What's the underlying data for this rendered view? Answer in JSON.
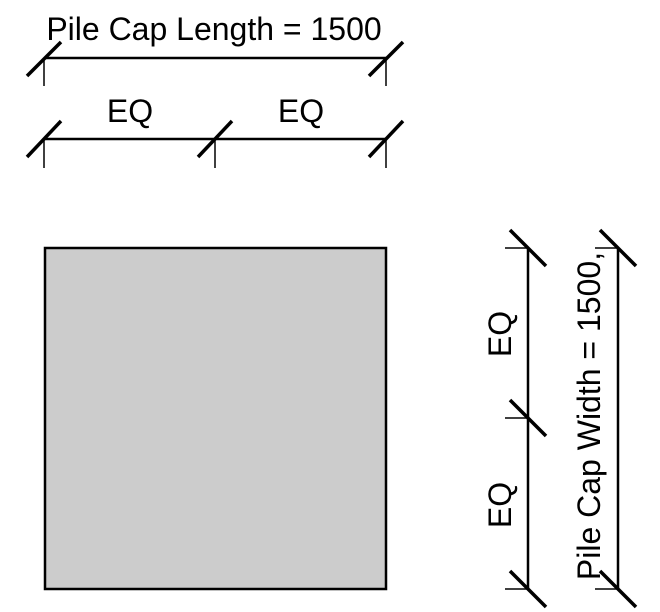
{
  "dimensions": {
    "length_label": "Pile Cap Length = 1500",
    "length_eq_left": "EQ",
    "length_eq_right": "EQ",
    "width_label": "Pile Cap Width = 1500,",
    "width_eq_top": "EQ",
    "width_eq_bottom": "EQ"
  },
  "pile_cap": {
    "fill": "#cccccc",
    "outline": "#000000"
  }
}
